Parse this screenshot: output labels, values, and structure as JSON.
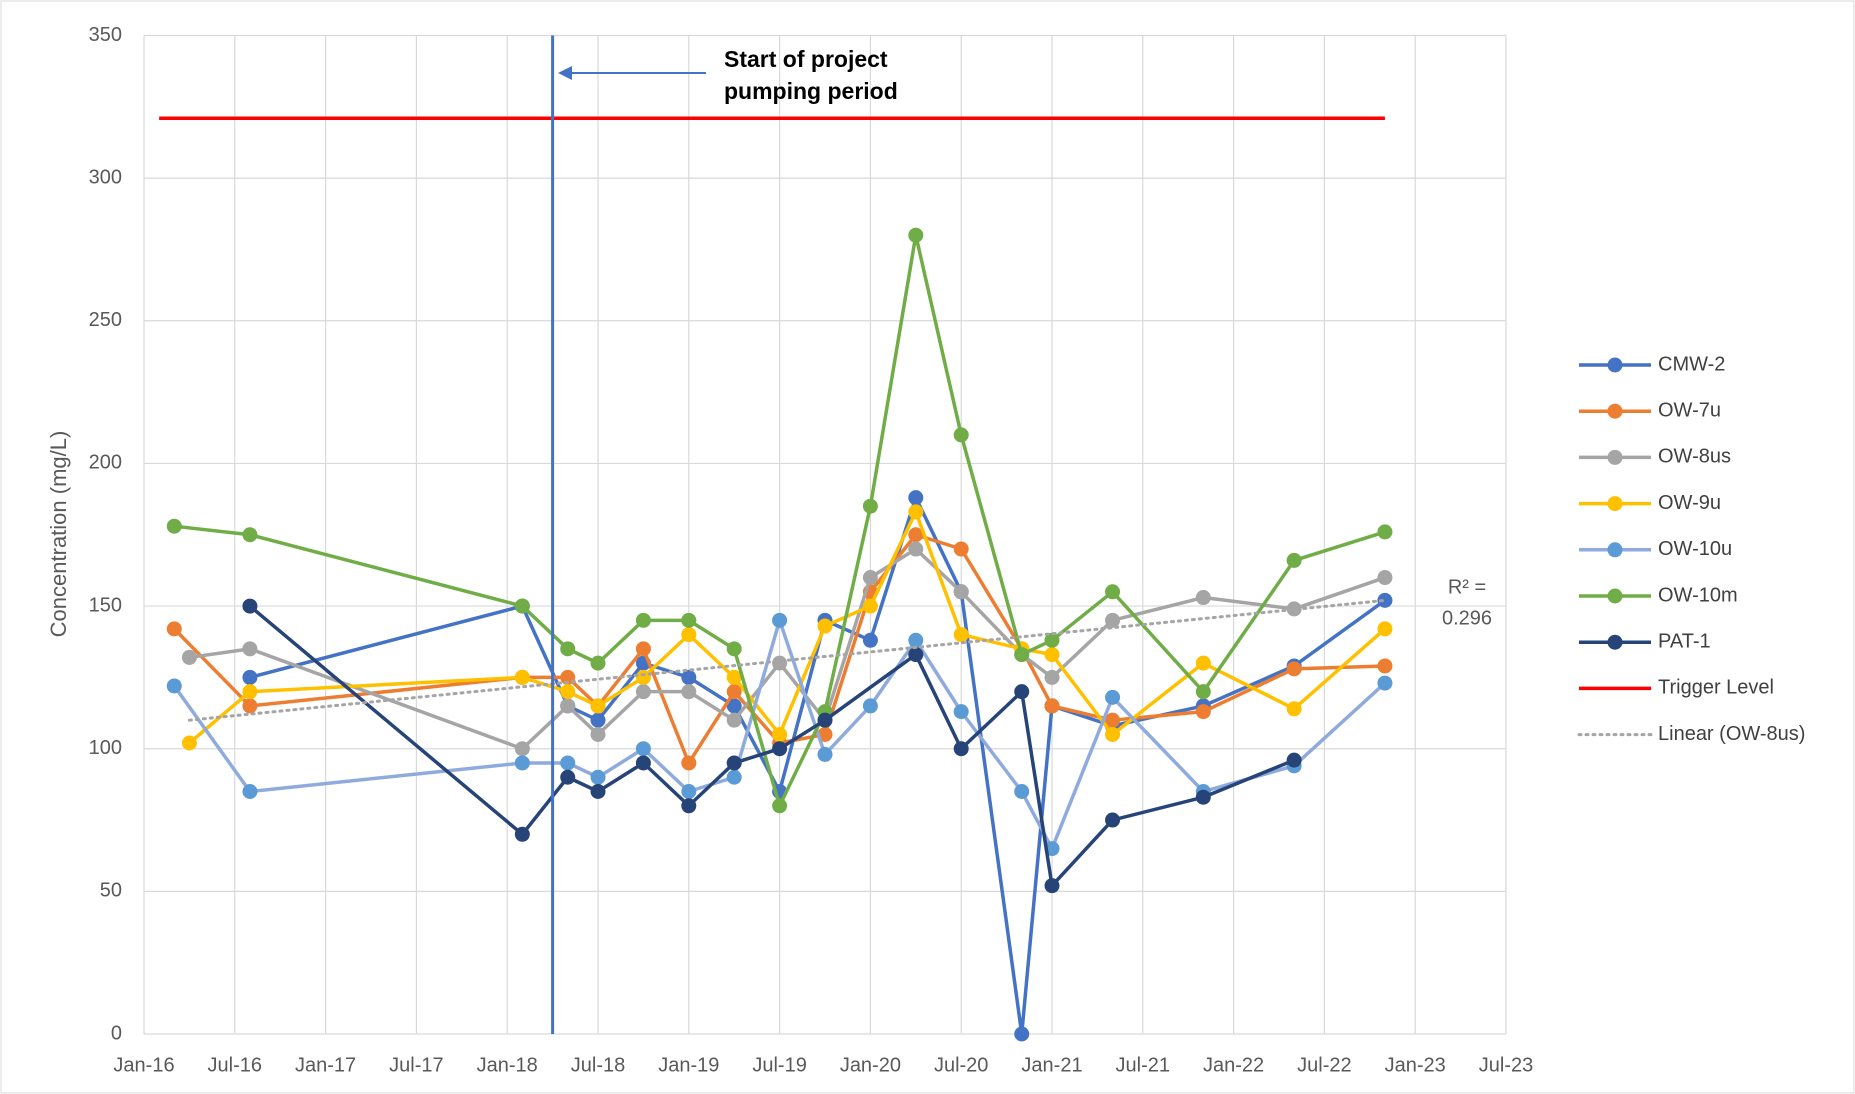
{
  "chart_data": {
    "type": "line",
    "y_label": "Concentration (mg/L)",
    "xlim": [
      "2016-01",
      "2023-07"
    ],
    "xticks": [
      {
        "value": "2016-01",
        "label": "Jan-16"
      },
      {
        "value": "2016-07",
        "label": "Jul-16"
      },
      {
        "value": "2017-01",
        "label": "Jan-17"
      },
      {
        "value": "2017-07",
        "label": "Jul-17"
      },
      {
        "value": "2018-01",
        "label": "Jan-18"
      },
      {
        "value": "2018-07",
        "label": "Jul-18"
      },
      {
        "value": "2019-01",
        "label": "Jan-19"
      },
      {
        "value": "2019-07",
        "label": "Jul-19"
      },
      {
        "value": "2020-01",
        "label": "Jan-20"
      },
      {
        "value": "2020-07",
        "label": "Jul-20"
      },
      {
        "value": "2021-01",
        "label": "Jan-21"
      },
      {
        "value": "2021-07",
        "label": "Jul-21"
      },
      {
        "value": "2022-01",
        "label": "Jan-22"
      },
      {
        "value": "2022-07",
        "label": "Jul-22"
      },
      {
        "value": "2023-01",
        "label": "Jan-23"
      },
      {
        "value": "2023-07",
        "label": "Jul-23"
      }
    ],
    "ylim": [
      0,
      350
    ],
    "yticks": [
      0,
      50,
      100,
      150,
      200,
      250,
      300,
      350
    ],
    "grid": true,
    "legend": "right",
    "series": [
      {
        "name": "CMW-2",
        "color": "#4472c4",
        "markers": true,
        "x": [
          "2016-08",
          "2018-02",
          "2018-05",
          "2018-07",
          "2018-10",
          "2019-01",
          "2019-04",
          "2019-07",
          "2019-10",
          "2020-01",
          "2020-04",
          "2020-07",
          "2020-11",
          "2021-01",
          "2021-05",
          "2021-11",
          "2022-05",
          "2022-11"
        ],
        "values": [
          125,
          150,
          115,
          110,
          130,
          125,
          115,
          85,
          145,
          138,
          188,
          155,
          0,
          115,
          108,
          115,
          129,
          152
        ]
      },
      {
        "name": "OW-7u",
        "color": "#ed7d31",
        "markers": true,
        "x": [
          "2016-03",
          "2016-08",
          "2018-02",
          "2018-05",
          "2018-07",
          "2018-10",
          "2019-01",
          "2019-04",
          "2019-07",
          "2019-10",
          "2020-01",
          "2020-04",
          "2020-07",
          "2020-11",
          "2021-01",
          "2021-05",
          "2021-11",
          "2022-05",
          "2022-11"
        ],
        "values": [
          142,
          115,
          125,
          125,
          115,
          135,
          95,
          120,
          102,
          105,
          155,
          175,
          170,
          135,
          115,
          110,
          113,
          128,
          129
        ]
      },
      {
        "name": "OW-8us",
        "color": "#a5a5a5",
        "markers": true,
        "x": [
          "2016-04",
          "2016-08",
          "2018-02",
          "2018-05",
          "2018-07",
          "2018-10",
          "2019-01",
          "2019-04",
          "2019-07",
          "2019-10",
          "2020-01",
          "2020-04",
          "2020-07",
          "2020-11",
          "2021-01",
          "2021-05",
          "2021-11",
          "2022-05",
          "2022-11"
        ],
        "values": [
          132,
          135,
          100,
          115,
          105,
          120,
          120,
          110,
          130,
          110,
          160,
          170,
          155,
          133,
          125,
          145,
          153,
          149,
          160
        ]
      },
      {
        "name": "OW-9u",
        "color": "#ffc000",
        "markers": true,
        "x": [
          "2016-04",
          "2016-08",
          "2018-02",
          "2018-05",
          "2018-07",
          "2018-10",
          "2019-01",
          "2019-04",
          "2019-07",
          "2019-10",
          "2020-01",
          "2020-04",
          "2020-07",
          "2020-11",
          "2021-01",
          "2021-05",
          "2021-11",
          "2022-05",
          "2022-11"
        ],
        "values": [
          102,
          120,
          125,
          120,
          115,
          125,
          140,
          125,
          105,
          143,
          150,
          183,
          140,
          135,
          133,
          105,
          130,
          114,
          142
        ]
      },
      {
        "name": "OW-10u",
        "color": "#5b9bd5",
        "markers": true,
        "line_color": "#8faadc",
        "x": [
          "2016-03",
          "2016-08",
          "2018-02",
          "2018-05",
          "2018-07",
          "2018-10",
          "2019-01",
          "2019-04",
          "2019-07",
          "2019-10",
          "2020-01",
          "2020-04",
          "2020-07",
          "2020-11",
          "2021-01",
          "2021-05",
          "2021-11",
          "2022-05",
          "2022-11"
        ],
        "values": [
          122,
          85,
          95,
          95,
          90,
          100,
          85,
          90,
          145,
          98,
          115,
          138,
          113,
          85,
          65,
          118,
          85,
          94,
          123
        ]
      },
      {
        "name": "OW-10m",
        "color": "#70ad47",
        "markers": true,
        "x": [
          "2016-03",
          "2016-08",
          "2018-02",
          "2018-05",
          "2018-07",
          "2018-10",
          "2019-01",
          "2019-04",
          "2019-07",
          "2019-10",
          "2020-01",
          "2020-04",
          "2020-07",
          "2020-11",
          "2021-01",
          "2021-05",
          "2021-11",
          "2022-05",
          "2022-11"
        ],
        "values": [
          178,
          175,
          150,
          135,
          130,
          145,
          145,
          135,
          80,
          113,
          185,
          280,
          210,
          133,
          138,
          155,
          120,
          166,
          176
        ]
      },
      {
        "name": "PAT-1",
        "color": "#264478",
        "markers": true,
        "x": [
          "2016-08",
          "2018-02",
          "2018-05",
          "2018-07",
          "2018-10",
          "2019-01",
          "2019-04",
          "2019-07",
          "2019-10",
          "2020-04",
          "2020-07",
          "2020-11",
          "2021-01",
          "2021-05",
          "2021-11",
          "2022-05"
        ],
        "values": [
          150,
          70,
          90,
          85,
          95,
          80,
          95,
          100,
          110,
          133,
          100,
          120,
          52,
          75,
          83,
          96
        ]
      },
      {
        "name": "Trigger Level",
        "color": "#ff0000",
        "markers": false,
        "x": [
          "2016-02",
          "2022-11"
        ],
        "values": [
          321,
          321
        ]
      },
      {
        "name": "Linear (OW-8us)",
        "color": "#a5a5a5",
        "markers": false,
        "dash": "dotted",
        "x": [
          "2016-04",
          "2022-11"
        ],
        "values": [
          110,
          152
        ]
      }
    ],
    "vline": {
      "x": "2018-04",
      "color": "#4472c4"
    },
    "annotation": {
      "lines": [
        "Start of project",
        "pumping period"
      ]
    },
    "r2_label": {
      "lines": [
        "R² =",
        "0.296"
      ]
    }
  }
}
